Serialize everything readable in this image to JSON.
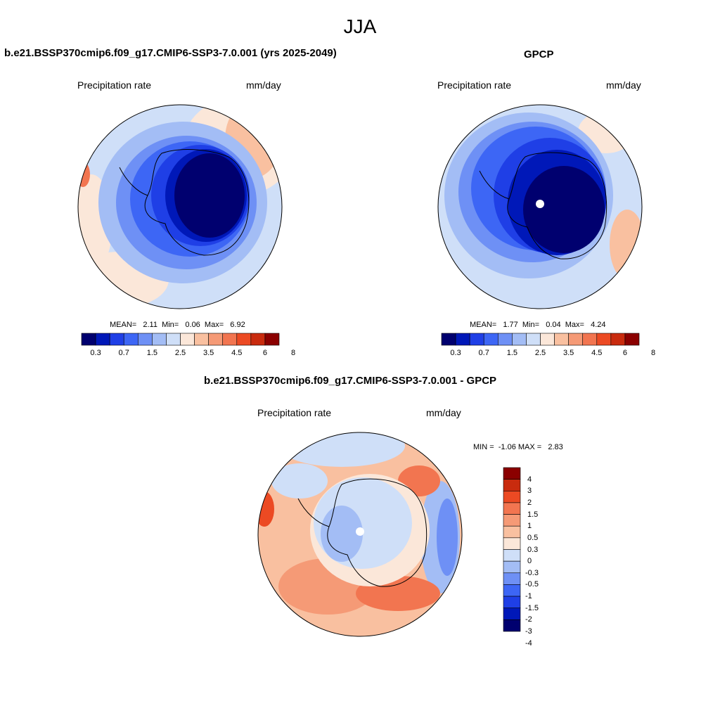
{
  "figure": {
    "title": "JJA"
  },
  "panel_left": {
    "title": "b.e21.BSSP370cmip6.f09_g17.CMIP6-SSP3-7.0.001 (yrs 2025-2049)",
    "var_label": "Precipitation rate",
    "units": "mm/day",
    "stats": "MEAN=   2.11  Min=   0.06  Max=   6.92"
  },
  "panel_right": {
    "title": "GPCP",
    "var_label": "Precipitation rate",
    "units": "mm/day",
    "stats": "MEAN=   1.77  Min=   0.04  Max=   4.24"
  },
  "panel_diff": {
    "title": "b.e21.BSSP370cmip6.f09_g17.CMIP6-SSP3-7.0.001 - GPCP",
    "var_label": "Precipitation rate",
    "units": "mm/day",
    "stats": "MIN =  -1.06 MAX =   2.83"
  },
  "colorbar_abs": {
    "colors": [
      "#00006f",
      "#0018b8",
      "#1f3fe6",
      "#3d66f5",
      "#6e90f5",
      "#a3bdf5",
      "#cfdff8",
      "#fbe7d9",
      "#f9c0a0",
      "#f59a76",
      "#f27550",
      "#ec4a23",
      "#c92b0e",
      "#8b0000"
    ],
    "tick_labels": [
      "0.3",
      "0.7",
      "1.5",
      "2.5",
      "3.5",
      "4.5",
      "6",
      "8"
    ]
  },
  "colorbar_diff": {
    "colors": [
      "#00006f",
      "#0018b8",
      "#1f3fe6",
      "#3d66f5",
      "#6e90f5",
      "#a3bdf5",
      "#cfdff8",
      "#fbe7d9",
      "#f9c0a0",
      "#f59a76",
      "#f27550",
      "#ec4a23",
      "#c92b0e",
      "#8b0000"
    ],
    "tick_labels": [
      "4",
      "3",
      "2",
      "1.5",
      "1",
      "0.5",
      "0.3",
      "0",
      "-0.3",
      "-0.5",
      "-1",
      "-1.5",
      "-2",
      "-3",
      "-4"
    ]
  }
}
